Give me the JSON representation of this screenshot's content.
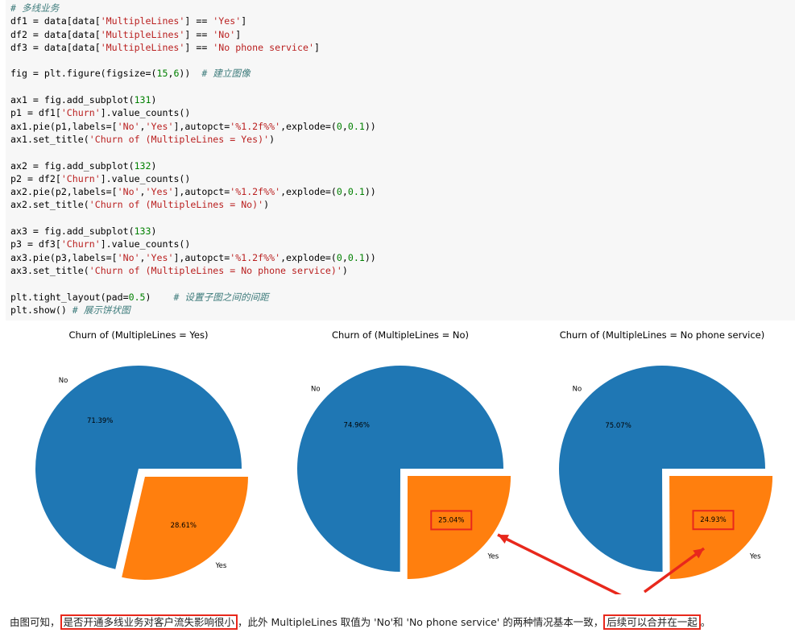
{
  "code_lines": [
    [
      [
        "cmt",
        "# 多线业务"
      ]
    ],
    [
      [
        "",
        "df1 = data[data["
      ],
      [
        "str",
        "'MultipleLines'"
      ],
      [
        "",
        "] == "
      ],
      [
        "str",
        "'Yes'"
      ],
      [
        "",
        "]"
      ]
    ],
    [
      [
        "",
        "df2 = data[data["
      ],
      [
        "str",
        "'MultipleLines'"
      ],
      [
        "",
        "] == "
      ],
      [
        "str",
        "'No'"
      ],
      [
        "",
        "]"
      ]
    ],
    [
      [
        "",
        "df3 = data[data["
      ],
      [
        "str",
        "'MultipleLines'"
      ],
      [
        "",
        "] == "
      ],
      [
        "str",
        "'No phone service'"
      ],
      [
        "",
        "]"
      ]
    ],
    [],
    [
      [
        "",
        "fig = plt.figure(figsize=("
      ],
      [
        "num",
        "15"
      ],
      [
        "",
        ","
      ],
      [
        "num",
        "6"
      ],
      [
        "",
        "))  "
      ],
      [
        "cmt",
        "# 建立图像"
      ]
    ],
    [],
    [
      [
        "",
        "ax1 = fig.add_subplot("
      ],
      [
        "num",
        "131"
      ],
      [
        "",
        ")"
      ]
    ],
    [
      [
        "",
        "p1 = df1["
      ],
      [
        "str",
        "'Churn'"
      ],
      [
        "",
        "].value_counts()"
      ]
    ],
    [
      [
        "",
        "ax1.pie(p1,labels=["
      ],
      [
        "str",
        "'No'"
      ],
      [
        "",
        ","
      ],
      [
        "str",
        "'Yes'"
      ],
      [
        "",
        "],autopct="
      ],
      [
        "str",
        "'%1.2f%%'"
      ],
      [
        "",
        ",explode=("
      ],
      [
        "num",
        "0"
      ],
      [
        "",
        ","
      ],
      [
        "num",
        "0.1"
      ],
      [
        "",
        "))"
      ]
    ],
    [
      [
        "",
        "ax1.set_title("
      ],
      [
        "str",
        "'Churn of (MultipleLines = Yes)'"
      ],
      [
        "",
        ")"
      ]
    ],
    [],
    [
      [
        "",
        "ax2 = fig.add_subplot("
      ],
      [
        "num",
        "132"
      ],
      [
        "",
        ")"
      ]
    ],
    [
      [
        "",
        "p2 = df2["
      ],
      [
        "str",
        "'Churn'"
      ],
      [
        "",
        "].value_counts()"
      ]
    ],
    [
      [
        "",
        "ax2.pie(p2,labels=["
      ],
      [
        "str",
        "'No'"
      ],
      [
        "",
        ","
      ],
      [
        "str",
        "'Yes'"
      ],
      [
        "",
        "],autopct="
      ],
      [
        "str",
        "'%1.2f%%'"
      ],
      [
        "",
        ",explode=("
      ],
      [
        "num",
        "0"
      ],
      [
        "",
        ","
      ],
      [
        "num",
        "0.1"
      ],
      [
        "",
        "))"
      ]
    ],
    [
      [
        "",
        "ax2.set_title("
      ],
      [
        "str",
        "'Churn of (MultipleLines = No)'"
      ],
      [
        "",
        ")"
      ]
    ],
    [],
    [
      [
        "",
        "ax3 = fig.add_subplot("
      ],
      [
        "num",
        "133"
      ],
      [
        "",
        ")"
      ]
    ],
    [
      [
        "",
        "p3 = df3["
      ],
      [
        "str",
        "'Churn'"
      ],
      [
        "",
        "].value_counts()"
      ]
    ],
    [
      [
        "",
        "ax3.pie(p3,labels=["
      ],
      [
        "str",
        "'No'"
      ],
      [
        "",
        ","
      ],
      [
        "str",
        "'Yes'"
      ],
      [
        "",
        "],autopct="
      ],
      [
        "str",
        "'%1.2f%%'"
      ],
      [
        "",
        ",explode=("
      ],
      [
        "num",
        "0"
      ],
      [
        "",
        ","
      ],
      [
        "num",
        "0.1"
      ],
      [
        "",
        "))"
      ]
    ],
    [
      [
        "",
        "ax3.set_title("
      ],
      [
        "str",
        "'Churn of (MultipleLines = No phone service)'"
      ],
      [
        "",
        ")"
      ]
    ],
    [],
    [
      [
        "",
        "plt.tight_layout(pad="
      ],
      [
        "num",
        "0.5"
      ],
      [
        "",
        ")    "
      ],
      [
        "cmt",
        "# 设置子图之间的间距"
      ]
    ],
    [
      [
        "",
        "plt.show() "
      ],
      [
        "cmt",
        "# 展示饼状图"
      ]
    ]
  ],
  "chart_data": [
    {
      "type": "pie",
      "title": "Churn of (MultipleLines = Yes)",
      "labels": [
        "No",
        "Yes"
      ],
      "values": [
        71.39,
        28.61
      ],
      "autopct": [
        "71.39%",
        "28.61%"
      ],
      "explode": [
        0,
        0.1
      ],
      "colors": [
        "#1f77b4",
        "#ff7f0e"
      ]
    },
    {
      "type": "pie",
      "title": "Churn of (MultipleLines = No)",
      "labels": [
        "No",
        "Yes"
      ],
      "values": [
        74.96,
        25.04
      ],
      "autopct": [
        "74.96%",
        "25.04%"
      ],
      "explode": [
        0,
        0.1
      ],
      "colors": [
        "#1f77b4",
        "#ff7f0e"
      ]
    },
    {
      "type": "pie",
      "title": "Churn of (MultipleLines = No phone service)",
      "labels": [
        "No",
        "Yes"
      ],
      "values": [
        75.07,
        24.93
      ],
      "autopct": [
        "75.07%",
        "24.93%"
      ],
      "explode": [
        0,
        0.1
      ],
      "colors": [
        "#1f77b4",
        "#ff7f0e"
      ]
    }
  ],
  "annotation_color": "#e8281c",
  "conclusion": {
    "part1": "由图可知，",
    "highlight1": "是否开通多线业务对客户流失影响很小",
    "part2": "，此外 MultipleLines 取值为 'No'和 'No phone service' 的两种情况基本一致，",
    "highlight2": "后续可以合并在一起",
    "part3": "。"
  }
}
